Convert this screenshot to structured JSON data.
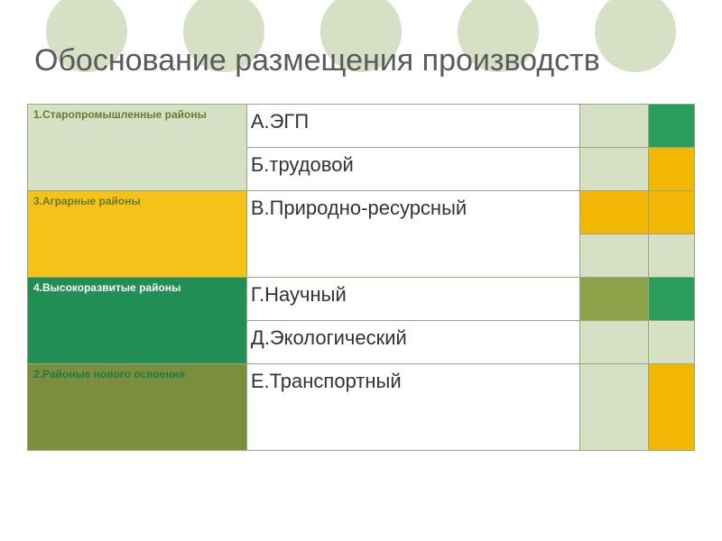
{
  "colors": {
    "circle": "#d6e0c4",
    "green_dark": "#2a9d5c",
    "green_dark2": "#218f53",
    "green_pale": "#d6e0c4",
    "olive": "#8ea24a",
    "olive_dark": "#7a8e3e",
    "yellow": "#f2b705",
    "yellow2": "#f5c21a",
    "white": "#ffffff",
    "title_text": "#5a5a5a",
    "label_olive": "#6b7a2f",
    "label_green": "#1f7a45"
  },
  "title": "Обоснование размещения производств",
  "rows": {
    "r1_label": "1.Старопромышленные районы",
    "r1_factor": "А.ЭГП",
    "r2_factor": "Б.трудовой",
    "r3_label": "3.Аграрные районы",
    "r3_factor": "В.Природно-ресурсный",
    "r4_label": "4.Высокоразвитые районы",
    "r4_factor": "Г.Научный",
    "r5_factor": "Д.Экологический",
    "r6_label": "2.Районые нового освоения",
    "r6_factor": "Е.Транспортный"
  }
}
